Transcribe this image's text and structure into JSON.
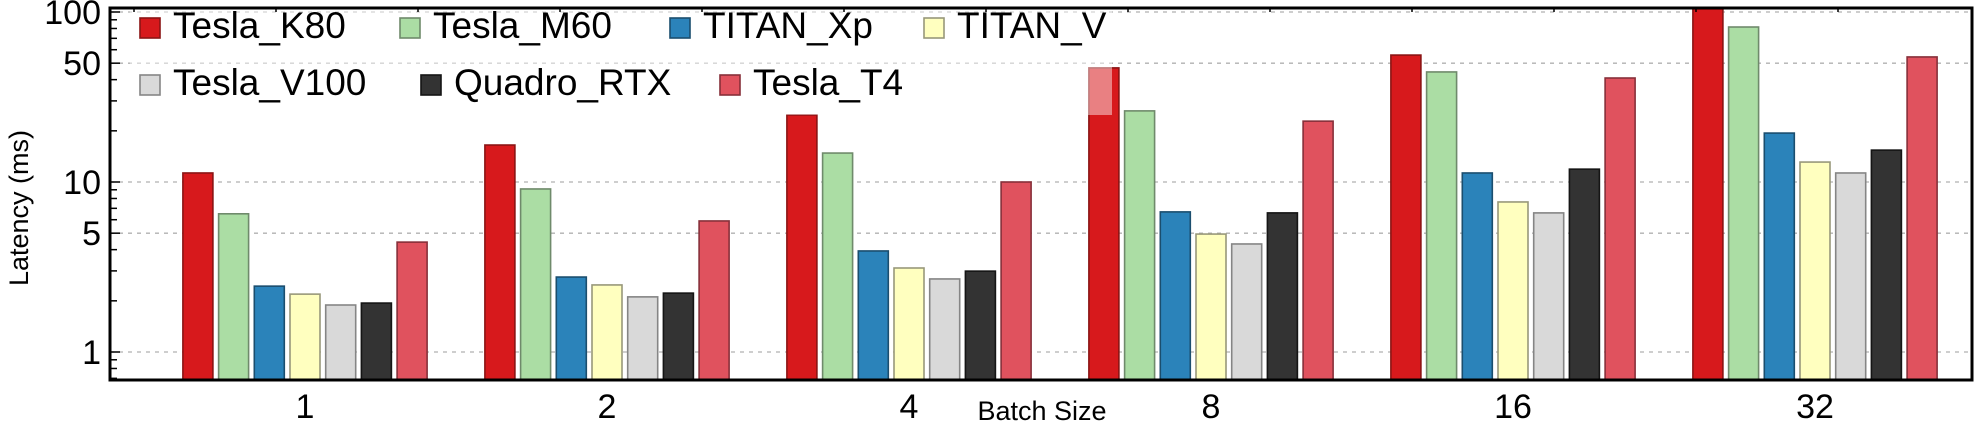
{
  "chart_data": {
    "type": "bar",
    "title": "",
    "xlabel": "Batch Size",
    "ylabel": "Latency (ms)",
    "yscale": "log",
    "ylim": [
      0.69,
      107
    ],
    "grid": true,
    "legend_position": "top-left",
    "categories": [
      "1",
      "2",
      "4",
      "8",
      "16",
      "32"
    ],
    "y_ticks": [
      1,
      5,
      10,
      50,
      100
    ],
    "y_tick_labels": [
      "1",
      "5",
      "10",
      "50",
      "100"
    ],
    "series": [
      {
        "name": "Tesla_K80",
        "color": "#d7191c",
        "edge": "#8b1414",
        "values": [
          11.3,
          16.5,
          24.8,
          46.9,
          55.8,
          107
        ]
      },
      {
        "name": "Tesla_M60",
        "color": "#abdda4",
        "edge": "#6f8a6b",
        "values": [
          6.5,
          9.1,
          14.8,
          26.2,
          44.4,
          81.6
        ]
      },
      {
        "name": "TITAN_Xp",
        "color": "#2b83ba",
        "edge": "#1b4e6e",
        "values": [
          2.44,
          2.76,
          3.93,
          6.67,
          11.3,
          19.4
        ]
      },
      {
        "name": "TITAN_V",
        "color": "#ffffbf",
        "edge": "#98987a",
        "values": [
          2.19,
          2.48,
          3.12,
          4.94,
          7.63,
          13.1
        ]
      },
      {
        "name": "Tesla_V100",
        "color": "#d9d9d9",
        "edge": "#858585",
        "values": [
          1.89,
          2.11,
          2.69,
          4.32,
          6.58,
          11.3
        ]
      },
      {
        "name": "Quadro_RTX",
        "color": "#333333",
        "edge": "#151515",
        "values": [
          1.94,
          2.22,
          2.99,
          6.58,
          11.9,
          15.4
        ]
      },
      {
        "name": "Tesla_T4",
        "color": "#e0525e",
        "edge": "#87303a",
        "values": [
          4.43,
          5.9,
          10.0,
          22.8,
          40.9,
          54.4
        ]
      }
    ]
  }
}
